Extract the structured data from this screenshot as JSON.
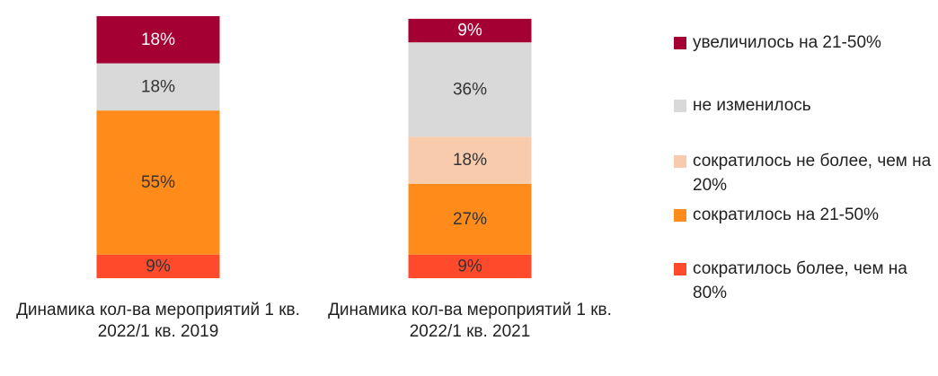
{
  "chart_data": {
    "type": "stacked_bar",
    "categories": [
      "Динамика кол-ва мероприятий 1 кв. 2022/1 кв. 2019",
      "Динамика кол-ва мероприятий 1 кв. 2022/1 кв. 2021"
    ],
    "ylim": [
      0,
      100
    ],
    "series": [
      {
        "name": "сократилось более, чем на 80%",
        "color": "#ff4b2b",
        "values": [
          9,
          9
        ],
        "value_labels": [
          "9%",
          "9%"
        ]
      },
      {
        "name": "сократилось на 21-50%",
        "color": "#ff8c1a",
        "values": [
          55,
          27
        ],
        "value_labels": [
          "55%",
          "27%"
        ]
      },
      {
        "name": "сократилось не более, чем на 20%",
        "color": "#f8cbad",
        "values": [
          null,
          18
        ],
        "value_labels": [
          null,
          "18%"
        ]
      },
      {
        "name": "не изменилось",
        "color": "#d9d9d9",
        "values": [
          18,
          36
        ],
        "value_labels": [
          "18%",
          "36%"
        ]
      },
      {
        "name": "увеличилось на 21-50%",
        "color": "#a50034",
        "values": [
          18,
          9
        ],
        "value_labels": [
          "18%",
          "9%"
        ]
      }
    ]
  }
}
